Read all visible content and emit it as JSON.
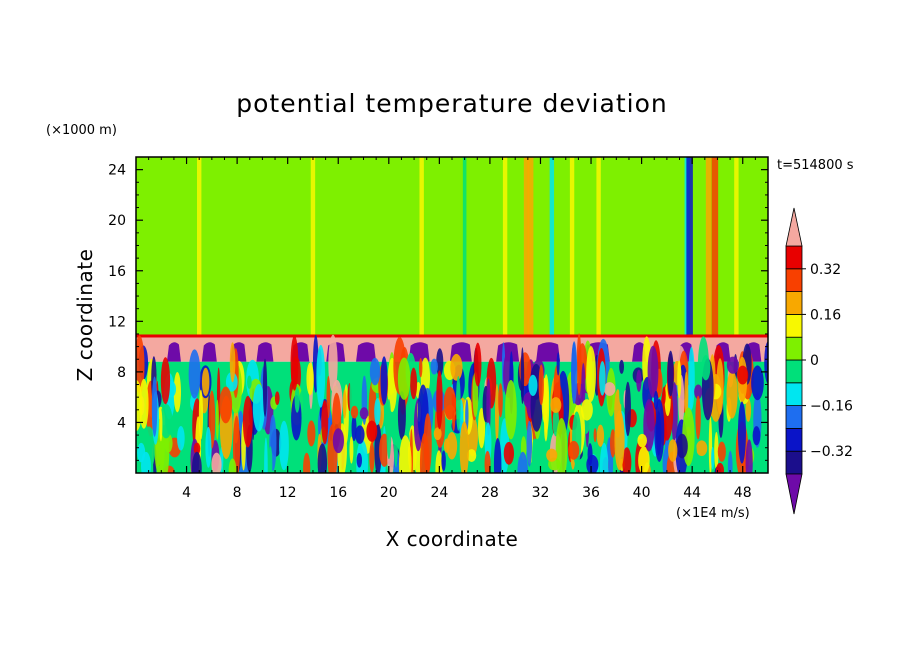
{
  "chart_data": {
    "type": "heatmap",
    "title": "potential temperature deviation",
    "xlabel": "X coordinate",
    "ylabel": "Z coordinate",
    "x_unit": "(×1E4 m/s)",
    "y_unit": "(×1000 m)",
    "time_label": "t=514800 s",
    "xlim": [
      0,
      50
    ],
    "ylim": [
      0,
      25
    ],
    "x_ticks": [
      4,
      8,
      12,
      16,
      20,
      24,
      28,
      32,
      36,
      40,
      44,
      48
    ],
    "y_ticks": [
      4,
      8,
      12,
      16,
      20,
      24
    ],
    "colorbar": {
      "levels": [
        -0.4,
        -0.32,
        -0.24,
        -0.16,
        -0.08,
        0,
        0.08,
        0.16,
        0.24,
        0.32,
        0.4
      ],
      "colors": [
        "#6e0aa8",
        "#1b0e8c",
        "#0a14c8",
        "#1e6ef0",
        "#00e6f0",
        "#00e07a",
        "#7ef000",
        "#f8f800",
        "#f8a800",
        "#f84000",
        "#e80000",
        "#f4a8a0"
      ],
      "labels": [
        {
          "value": 0.32,
          "text": "0.32"
        },
        {
          "value": 0.16,
          "text": "0.16"
        },
        {
          "value": 0,
          "text": "0"
        },
        {
          "value": -0.16,
          "text": "−0.16"
        },
        {
          "value": -0.32,
          "text": "−0.32"
        }
      ]
    },
    "layers": {
      "upper": {
        "z_range": [
          10.8,
          25
        ],
        "background_value": 0.04
      },
      "inversion": {
        "z_range": [
          8.8,
          10.8
        ],
        "background_value": 0.45,
        "cold_pocket_value": -0.45
      },
      "lower": {
        "z_range": [
          0,
          8.8
        ],
        "description_value_range": [
          -0.45,
          0.45
        ]
      }
    },
    "upper_columns": [
      {
        "x": 5.0,
        "value": 0.1
      },
      {
        "x": 14.0,
        "value": 0.1
      },
      {
        "x": 22.6,
        "value": 0.1
      },
      {
        "x": 26.0,
        "value": -0.04
      },
      {
        "x": 29.2,
        "value": 0.1
      },
      {
        "x": 30.9,
        "value": 0.18
      },
      {
        "x": 31.2,
        "value": 0.22
      },
      {
        "x": 32.9,
        "value": -0.1
      },
      {
        "x": 34.5,
        "value": 0.1
      },
      {
        "x": 36.6,
        "value": 0.1
      },
      {
        "x": 43.6,
        "value": -0.15
      },
      {
        "x": 43.8,
        "value": -0.25
      },
      {
        "x": 45.3,
        "value": 0.18
      },
      {
        "x": 45.8,
        "value": 0.25
      },
      {
        "x": 47.5,
        "value": 0.1
      }
    ],
    "cold_pockets_x": [
      3.0,
      5.8,
      8.1,
      10.2,
      13.0,
      15.8,
      18.2,
      22.4,
      25.7,
      29.4,
      32.6,
      36.5,
      39.8,
      43.5,
      46.4,
      48.8
    ]
  }
}
